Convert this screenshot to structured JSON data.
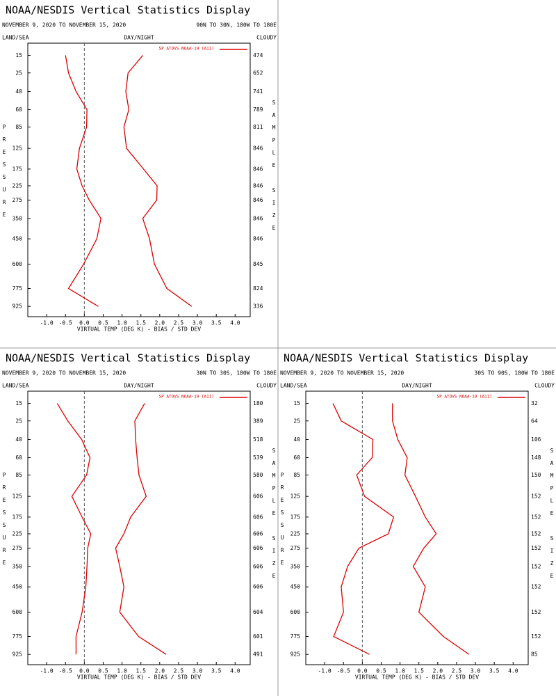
{
  "chart_data": [
    {
      "type": "line",
      "title": "NOAA/NESDIS Vertical Statistics Display",
      "subtitle": "NOVEMBER 9, 2020 TO NOVEMBER 15, 2020",
      "region": "90N TO 30N, 180W TO 180E",
      "land_sea_label": "LAND/SEA",
      "day_night_label": "DAY/NIGHT",
      "cloudy_label": "CLOUDY",
      "ylabel": "PRESSURE",
      "y2label": "SAMPLE SIZE",
      "xlabel": "VIRTUAL TEMP (DEG K) - BIAS / STD DEV",
      "y": [
        15,
        25,
        40,
        60,
        85,
        125,
        175,
        225,
        275,
        350,
        450,
        600,
        775,
        925
      ],
      "yticks": [
        15,
        25,
        40,
        60,
        85,
        125,
        175,
        225,
        275,
        350,
        450,
        600,
        775,
        925
      ],
      "ylim": [
        10,
        1020
      ],
      "yscale": "pressure",
      "xlim": [
        -1.5,
        4.4
      ],
      "xticks": [
        {
          "value": -1,
          "label": "-1.0"
        },
        {
          "value": -0.5,
          "label": "-0.5"
        },
        {
          "value": 0,
          "label": "0.0"
        },
        {
          "value": 0.5,
          "label": "0.5"
        },
        {
          "value": 1,
          "label": "1.0"
        },
        {
          "value": 1.5,
          "label": "1.5"
        },
        {
          "value": 2,
          "label": "2.0"
        },
        {
          "value": 2.5,
          "label": "2.5"
        },
        {
          "value": 3,
          "label": "3.0"
        },
        {
          "value": 3.5,
          "label": "3.5"
        },
        {
          "value": 4,
          "label": "4.0"
        }
      ],
      "sample_size": [
        474,
        652,
        741,
        789,
        811,
        846,
        846,
        846,
        846,
        846,
        846,
        845,
        824,
        336
      ],
      "series": [
        {
          "name": "SP ATOVS NOAA-19 (A11)",
          "color": "#dd0000",
          "values": [
            -0.5,
            -0.42,
            -0.22,
            0.07,
            0.06,
            -0.13,
            -0.2,
            -0.06,
            0.13,
            0.44,
            0.33,
            -0.02,
            -0.42,
            0.37
          ]
        },
        {
          "color": "#dd0000",
          "values": [
            1.55,
            1.16,
            1.1,
            1.18,
            1.05,
            1.12,
            1.57,
            1.93,
            1.92,
            1.55,
            1.73,
            1.86,
            2.19,
            2.85
          ]
        }
      ]
    },
    {
      "type": "line",
      "title": "NOAA/NESDIS Vertical Statistics Display",
      "subtitle": "NOVEMBER 9, 2020 TO NOVEMBER 15, 2020",
      "region": "30N TO 30S, 180W TO 180E",
      "land_sea_label": "LAND/SEA",
      "day_night_label": "DAY/NIGHT",
      "cloudy_label": "CLOUDY",
      "ylabel": "PRESSURE",
      "y2label": "SAMPLE SIZE",
      "xlabel": "VIRTUAL TEMP (DEG K) - BIAS / STD DEV",
      "y": [
        15,
        25,
        40,
        60,
        85,
        125,
        175,
        225,
        275,
        350,
        450,
        600,
        775,
        925
      ],
      "yticks": [
        15,
        25,
        40,
        60,
        85,
        125,
        175,
        225,
        275,
        350,
        450,
        600,
        775,
        925
      ],
      "ylim": [
        10,
        1020
      ],
      "yscale": "pressure",
      "xlim": [
        -1.5,
        4.4
      ],
      "xticks": [
        {
          "value": -1,
          "label": "-1.0"
        },
        {
          "value": -0.5,
          "label": "-0.5"
        },
        {
          "value": 0,
          "label": "0.0"
        },
        {
          "value": 0.5,
          "label": "0.5"
        },
        {
          "value": 1,
          "label": "1.0"
        },
        {
          "value": 1.5,
          "label": "1.5"
        },
        {
          "value": 2,
          "label": "2.0"
        },
        {
          "value": 2.5,
          "label": "2.5"
        },
        {
          "value": 3,
          "label": "3.0"
        },
        {
          "value": 3.5,
          "label": "3.5"
        },
        {
          "value": 4,
          "label": "4.0"
        }
      ],
      "sample_size": [
        180,
        389,
        518,
        539,
        580,
        606,
        606,
        606,
        606,
        606,
        606,
        604,
        601,
        491
      ],
      "series": [
        {
          "name": "SP ATOVS NOAA-19 (A11)",
          "color": "#dd0000",
          "values": [
            -0.72,
            -0.44,
            -0.07,
            0.15,
            0.06,
            -0.33,
            -0.06,
            0.17,
            0.09,
            0.07,
            0.04,
            -0.06,
            -0.22,
            -0.22
          ]
        },
        {
          "color": "#dd0000",
          "values": [
            1.6,
            1.34,
            1.36,
            1.4,
            1.45,
            1.64,
            1.23,
            1.05,
            0.83,
            0.94,
            1.05,
            0.94,
            1.44,
            2.17
          ]
        }
      ]
    },
    {
      "type": "line",
      "title": "NOAA/NESDIS Vertical Statistics Display",
      "subtitle": "NOVEMBER 9, 2020 TO NOVEMBER 15, 2020",
      "region": "30S TO 90S, 180W TO 180E",
      "land_sea_label": "LAND/SEA",
      "day_night_label": "DAY/NIGHT",
      "cloudy_label": "CLOUDY",
      "ylabel": "PRESSURE",
      "y2label": "SAMPLE SIZE",
      "xlabel": "VIRTUAL TEMP (DEG K) - BIAS / STD DEV",
      "y": [
        15,
        25,
        40,
        60,
        85,
        125,
        175,
        225,
        275,
        350,
        450,
        600,
        775,
        925
      ],
      "yticks": [
        15,
        25,
        40,
        60,
        85,
        125,
        175,
        225,
        275,
        350,
        450,
        600,
        775,
        925
      ],
      "ylim": [
        10,
        1020
      ],
      "yscale": "pressure",
      "xlim": [
        -1.5,
        4.4
      ],
      "xticks": [
        {
          "value": -1,
          "label": "-1.0"
        },
        {
          "value": -0.5,
          "label": "-0.5"
        },
        {
          "value": 0,
          "label": "0.0"
        },
        {
          "value": 0.5,
          "label": "0.5"
        },
        {
          "value": 1,
          "label": "1.0"
        },
        {
          "value": 1.5,
          "label": "1.5"
        },
        {
          "value": 2,
          "label": "2.0"
        },
        {
          "value": 2.5,
          "label": "2.5"
        },
        {
          "value": 3,
          "label": "3.0"
        },
        {
          "value": 3.5,
          "label": "3.5"
        },
        {
          "value": 4,
          "label": "4.0"
        }
      ],
      "sample_size": [
        32,
        64,
        106,
        148,
        150,
        152,
        152,
        152,
        152,
        152,
        152,
        152,
        152,
        85
      ],
      "series": [
        {
          "name": "SP ATOVS NOAA-19 (A11)",
          "color": "#dd0000",
          "values": [
            -0.78,
            -0.56,
            0.28,
            0.26,
            -0.15,
            0.06,
            0.83,
            0.69,
            -0.09,
            -0.39,
            -0.56,
            -0.5,
            -0.76,
            0.19
          ]
        },
        {
          "color": "#dd0000",
          "values": [
            0.8,
            0.8,
            0.94,
            1.19,
            1.13,
            1.41,
            1.67,
            1.96,
            1.63,
            1.35,
            1.67,
            1.5,
            2.15,
            2.83
          ]
        }
      ]
    }
  ]
}
